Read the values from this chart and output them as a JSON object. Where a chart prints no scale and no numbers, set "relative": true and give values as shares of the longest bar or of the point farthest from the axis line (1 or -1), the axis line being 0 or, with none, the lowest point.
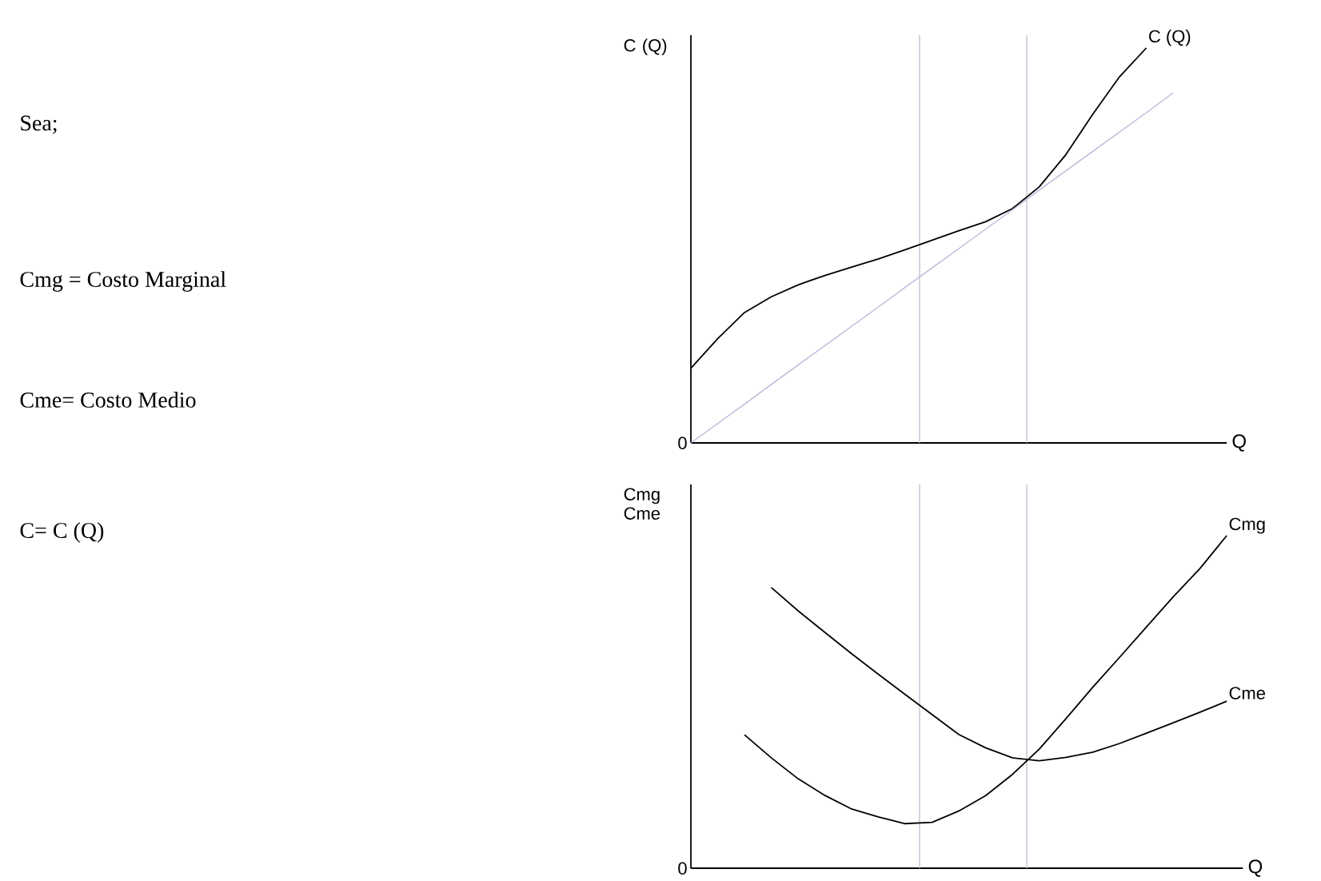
{
  "chart_data": [
    {
      "type": "other",
      "annotations": [
        "Sea;",
        "Cmg = Costo Marginal",
        "Cme= Costo Medio",
        "C= C (Q)"
      ]
    },
    {
      "type": "line",
      "relative": true,
      "ylabel": "C (Q)",
      "xlabel": "Q",
      "annotations": [
        "0"
      ],
      "categories": [
        null,
        null,
        null,
        null,
        null,
        null,
        null,
        null,
        null,
        null,
        null,
        null,
        null,
        null,
        null,
        null,
        null,
        null,
        null,
        null,
        null
      ],
      "series": [
        {
          "name": "C (Q)",
          "color": "#000000",
          "values": [
            0.189,
            0.264,
            0.33,
            0.37,
            0.4,
            0.424,
            0.445,
            0.466,
            0.489,
            0.513,
            0.537,
            0.56,
            0.593,
            0.648,
            0.73,
            0.832,
            0.927,
            1,
            null,
            null,
            null
          ]
        },
        {
          "color": "#b8bcd8",
          "values": [
            0,
            0.049,
            0.098,
            0.148,
            0.197,
            0.246,
            0.295,
            0.344,
            0.394,
            0.443,
            0.492,
            0.541,
            0.59,
            0.64,
            0.689,
            0.738,
            0.787,
            0.836,
            0.886,
            null,
            null
          ]
        }
      ]
    },
    {
      "type": "line",
      "relative": true,
      "ylabel": "Cmg Cme",
      "xlabel": "Q",
      "annotations": [
        "0"
      ],
      "categories": [
        null,
        null,
        null,
        null,
        null,
        null,
        null,
        null,
        null,
        null,
        null,
        null,
        null,
        null,
        null,
        null,
        null,
        null,
        null,
        null,
        null
      ],
      "series": [
        {
          "name": "Cmg",
          "color": "#000000",
          "values": [
            null,
            null,
            0.401,
            0.332,
            0.269,
            0.219,
            0.178,
            0.154,
            0.134,
            0.138,
            0.172,
            0.218,
            0.282,
            0.358,
            0.45,
            0.544,
            0.634,
            0.725,
            0.816,
            0.901,
            1
          ]
        },
        {
          "name": "Cme",
          "color": "#000000",
          "values": [
            null,
            null,
            null,
            0.844,
            0.774,
            0.709,
            0.645,
            0.583,
            0.522,
            0.462,
            0.402,
            0.362,
            0.332,
            0.323,
            0.333,
            0.349,
            0.375,
            0.406,
            0.437,
            0.469,
            0.502
          ]
        }
      ]
    }
  ]
}
